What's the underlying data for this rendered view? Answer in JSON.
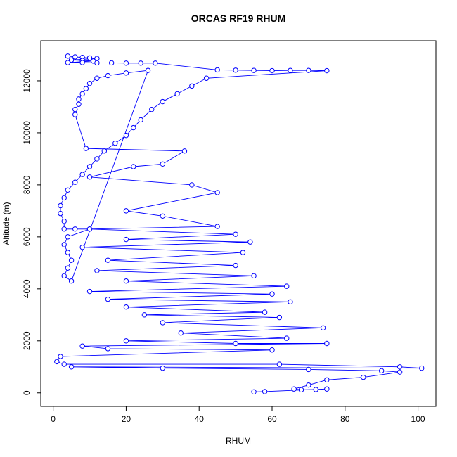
{
  "chart_data": {
    "type": "line",
    "markers": "circle",
    "title": "ORCAS RF19 RHUM",
    "x_label": "RHUM",
    "y_label": "Altitude (m)",
    "xlim": [
      -3.4,
      104.9
    ],
    "xticks": [
      0,
      20,
      40,
      60,
      80,
      100
    ],
    "ylim": [
      -520,
      13540
    ],
    "yticks": [
      0,
      2000,
      4000,
      6000,
      8000,
      10000,
      12000
    ],
    "x": [
      4,
      6,
      8,
      10,
      12,
      5,
      8,
      11,
      4,
      8,
      12,
      16,
      20,
      24,
      28,
      45,
      50,
      55,
      60,
      65,
      70,
      75,
      42,
      38,
      34,
      30,
      27,
      24,
      22,
      20,
      17,
      14,
      12,
      10,
      8,
      6,
      4,
      3,
      2,
      2,
      3,
      3,
      6,
      10,
      4,
      3,
      4,
      5,
      4,
      3,
      5,
      26,
      20,
      15,
      12,
      10,
      9,
      8,
      7,
      7,
      6,
      6,
      9,
      36,
      30,
      22,
      10,
      38,
      45,
      20,
      30,
      45,
      10,
      50,
      20,
      54,
      8,
      52,
      15,
      50,
      12,
      55,
      20,
      64,
      10,
      60,
      15,
      65,
      20,
      58,
      25,
      62,
      30,
      74,
      35,
      64,
      20,
      50,
      75,
      8,
      15,
      60,
      2,
      1,
      3,
      62,
      95,
      101,
      5,
      30,
      70,
      90,
      95,
      85,
      75,
      70,
      66,
      68,
      72,
      75,
      58,
      55
    ],
    "series": [
      {
        "color": "#0000ff",
        "values": [
          12950,
          12920,
          12900,
          12880,
          12860,
          12800,
          12780,
          12760,
          12700,
          12700,
          12690,
          12690,
          12680,
          12680,
          12680,
          12420,
          12410,
          12400,
          12390,
          12400,
          12400,
          12390,
          12100,
          11800,
          11500,
          11200,
          10900,
          10500,
          10200,
          9900,
          9600,
          9300,
          9000,
          8700,
          8400,
          8100,
          7800,
          7500,
          7200,
          6900,
          6600,
          6300,
          6300,
          6300,
          6000,
          5700,
          5400,
          5100,
          4800,
          4500,
          4300,
          12400,
          12300,
          12200,
          12100,
          11900,
          11700,
          11500,
          11300,
          11100,
          10900,
          10700,
          9400,
          9300,
          8800,
          8700,
          8300,
          8000,
          7700,
          7000,
          6800,
          6400,
          6300,
          6100,
          5900,
          5800,
          5600,
          5400,
          5100,
          4900,
          4700,
          4500,
          4300,
          4100,
          3900,
          3800,
          3600,
          3500,
          3300,
          3100,
          3000,
          2900,
          2700,
          2500,
          2300,
          2100,
          2000,
          1900,
          1900,
          1800,
          1700,
          1650,
          1400,
          1200,
          1100,
          1100,
          1000,
          950,
          1000,
          950,
          900,
          850,
          800,
          600,
          500,
          300,
          150,
          120,
          130,
          150,
          50,
          40
        ]
      }
    ]
  }
}
